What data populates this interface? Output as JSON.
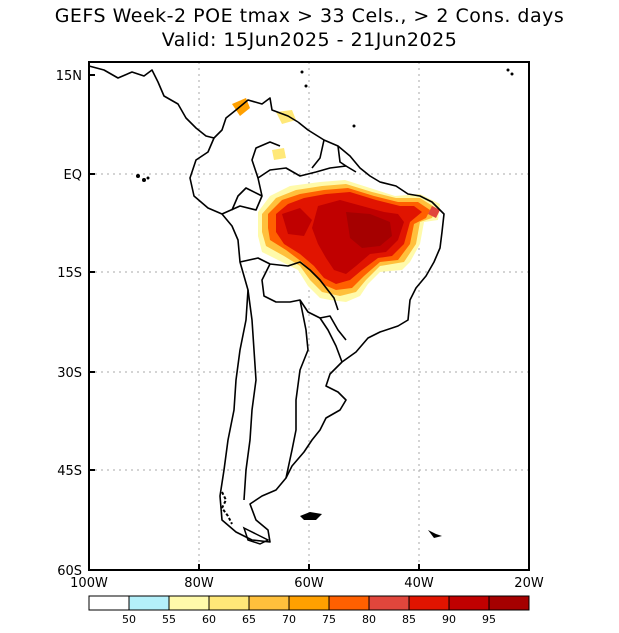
{
  "title": {
    "line1": "GEFS Week-2 POE tmax > 33 Cels., > 2 Cons. days",
    "line2": "Valid: 15Jun2025 - 21Jun2025"
  },
  "map": {
    "lat_labels": [
      "15N",
      "EQ",
      "15S",
      "30S",
      "45S",
      "60S"
    ],
    "lon_labels": [
      "100W",
      "80W",
      "60W",
      "40W",
      "20W"
    ]
  },
  "colorbar": {
    "labels": [
      "50",
      "55",
      "60",
      "65",
      "70",
      "75",
      "80",
      "85",
      "90",
      "95"
    ],
    "colors": [
      "#ffffff",
      "#b4f0fa",
      "#fffaaa",
      "#ffe878",
      "#ffc03c",
      "#ffa000",
      "#ff6000",
      "#e1463c",
      "#e11400",
      "#c00000",
      "#a50000"
    ]
  },
  "chart_data": {
    "type": "heatmap",
    "region": "South America",
    "variable": "Probability of exceedance tmax > 33 Cels., > 2 consecutive days",
    "valid": "15Jun2025 - 21Jun2025",
    "xlim": [
      -100,
      -20
    ],
    "ylim": [
      -60,
      15
    ],
    "levels": [
      50,
      55,
      60,
      65,
      70,
      75,
      80,
      85,
      90,
      95
    ]
  }
}
